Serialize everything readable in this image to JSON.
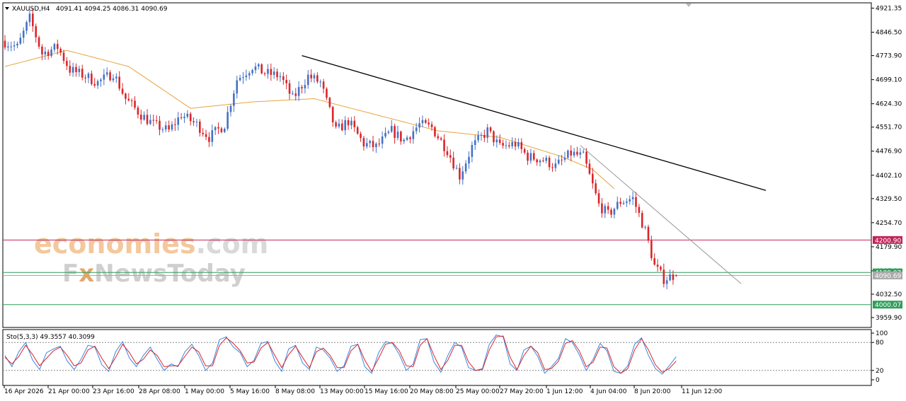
{
  "header": {
    "symbol": "XAUUSD,H4",
    "ohlc": "4091.41 4094.25 4086.31 4090.69"
  },
  "watermark": {
    "line1_a": "economies",
    "line1_b": ".com",
    "line2_a": "F",
    "line2_b": "x",
    "line2_c": "NewsToday"
  },
  "colors": {
    "bull": "#4472c4",
    "bear": "#d9262b",
    "ma": "#e8a33c",
    "trend": "#000000",
    "level_red": "#c0245a",
    "level_green": "#2e9e5a",
    "stoch_main": "#3d86e0",
    "stoch_signal": "#d9262b"
  },
  "chart_data": [
    {
      "type": "candlestick",
      "symbol": "XAUUSD",
      "timeframe": "H4",
      "ylim": [
        3959.9,
        4940
      ],
      "y_ticks": [
        "4921.35",
        "4846.50",
        "4773.90",
        "4699.10",
        "4624.30",
        "4551.70",
        "4476.90",
        "4402.10",
        "4329.50",
        "4254.70",
        "4179.90",
        "4105.10",
        "4032.50",
        "3959.90"
      ],
      "x_ticks": [
        "16 Apr 2026",
        "21 Apr 00:00",
        "23 Apr 16:00",
        "28 Apr 08:00",
        "1 May 00:00",
        "5 May 16:00",
        "8 May 08:00",
        "13 May 00:00",
        "15 May 16:00",
        "20 May 08:00",
        "25 May 00:00",
        "27 May 20:00",
        "1 Jun 12:00",
        "4 Jun 04:00",
        "8 Jun 20:00",
        "11 Jun 12:00"
      ],
      "close_path": [
        [
          0,
          4820
        ],
        [
          5,
          4800
        ],
        [
          9,
          4890
        ],
        [
          13,
          4780
        ],
        [
          18,
          4800
        ],
        [
          22,
          4730
        ],
        [
          27,
          4710
        ],
        [
          31,
          4690
        ],
        [
          36,
          4720
        ],
        [
          40,
          4640
        ],
        [
          45,
          4590
        ],
        [
          49,
          4560
        ],
        [
          54,
          4540
        ],
        [
          58,
          4590
        ],
        [
          63,
          4560
        ],
        [
          67,
          4520
        ],
        [
          72,
          4560
        ],
        [
          76,
          4700
        ],
        [
          81,
          4740
        ],
        [
          85,
          4720
        ],
        [
          90,
          4710
        ],
        [
          94,
          4640
        ],
        [
          99,
          4710
        ],
        [
          103,
          4690
        ],
        [
          108,
          4540
        ],
        [
          112,
          4570
        ],
        [
          117,
          4500
        ],
        [
          121,
          4490
        ],
        [
          126,
          4540
        ],
        [
          130,
          4510
        ],
        [
          135,
          4560
        ],
        [
          139,
          4550
        ],
        [
          144,
          4480
        ],
        [
          148,
          4400
        ],
        [
          152,
          4490
        ],
        [
          157,
          4540
        ],
        [
          161,
          4490
        ],
        [
          166,
          4500
        ],
        [
          170,
          4460
        ],
        [
          175,
          4450
        ],
        [
          179,
          4430
        ],
        [
          184,
          4470
        ],
        [
          188,
          4460
        ],
        [
          193,
          4310
        ],
        [
          196,
          4280
        ],
        [
          200,
          4320
        ],
        [
          204,
          4330
        ],
        [
          208,
          4230
        ],
        [
          211,
          4120
        ],
        [
          214,
          4080
        ],
        [
          217,
          4090
        ]
      ],
      "ohlc_last": {
        "open": 4091.41,
        "high": 4094.25,
        "low": 4086.31,
        "close": 4090.69
      },
      "moving_average": [
        [
          0,
          4740
        ],
        [
          20,
          4790
        ],
        [
          40,
          4740
        ],
        [
          60,
          4610
        ],
        [
          80,
          4630
        ],
        [
          100,
          4640
        ],
        [
          120,
          4590
        ],
        [
          140,
          4540
        ],
        [
          160,
          4520
        ],
        [
          180,
          4460
        ],
        [
          190,
          4420
        ],
        [
          197,
          4360
        ]
      ],
      "trendlines": [
        {
          "from": [
            96,
            4773.9
          ],
          "to": [
            246,
            4355
          ]
        },
        {
          "from": [
            186,
            4495
          ],
          "to": [
            238,
            4065
          ]
        }
      ],
      "levels": [
        {
          "value": 4200.9,
          "label": "4200.90",
          "color": "#c0245a"
        },
        {
          "value": 4100.07,
          "label": "4100.07",
          "color": "#2e9e5a"
        },
        {
          "value": 4090.69,
          "label": "4090.69",
          "color": "#aaaaaa"
        },
        {
          "value": 4000.07,
          "label": "4000.07",
          "color": "#2e9e5a"
        }
      ]
    },
    {
      "type": "line",
      "title": "Sto(5,3,3) 49.3557 40.3099",
      "ylim": [
        0,
        100
      ],
      "y_ticks": [
        "100",
        "80",
        "20",
        "0"
      ],
      "levels": [
        80,
        20
      ],
      "series": [
        {
          "name": "main",
          "values": [
            52,
            28,
            60,
            80,
            42,
            22,
            58,
            66,
            72,
            40,
            22,
            44,
            74,
            70,
            32,
            18,
            60,
            82,
            46,
            28,
            52,
            70,
            44,
            20,
            34,
            28,
            60,
            76,
            52,
            20,
            36,
            86,
            92,
            70,
            58,
            28,
            42,
            78,
            82,
            40,
            18,
            66,
            74,
            36,
            22,
            70,
            64,
            46,
            18,
            30,
            72,
            76,
            28,
            14,
            58,
            82,
            78,
            54,
            20,
            34,
            86,
            88,
            38,
            16,
            52,
            80,
            70,
            26,
            20,
            24,
            76,
            96,
            92,
            34,
            20,
            64,
            72,
            50,
            14,
            28,
            46,
            88,
            80,
            54,
            20,
            44,
            78,
            62,
            18,
            14,
            30,
            76,
            90,
            52,
            24,
            12,
            30,
            49.36
          ]
        },
        {
          "name": "signal",
          "values": [
            48,
            34,
            50,
            74,
            54,
            30,
            46,
            62,
            70,
            52,
            30,
            36,
            64,
            72,
            46,
            24,
            48,
            76,
            58,
            34,
            44,
            64,
            52,
            28,
            30,
            30,
            50,
            70,
            60,
            30,
            30,
            74,
            90,
            78,
            62,
            36,
            38,
            68,
            80,
            52,
            26,
            54,
            72,
            48,
            26,
            60,
            68,
            52,
            26,
            26,
            62,
            76,
            42,
            18,
            46,
            76,
            80,
            62,
            30,
            28,
            74,
            88,
            52,
            22,
            42,
            74,
            74,
            38,
            20,
            22,
            64,
            92,
            94,
            48,
            22,
            52,
            72,
            58,
            22,
            24,
            40,
            78,
            84,
            62,
            28,
            38,
            70,
            68,
            28,
            14,
            24,
            64,
            88,
            64,
            32,
            16,
            24,
            40.31
          ]
        }
      ]
    }
  ]
}
